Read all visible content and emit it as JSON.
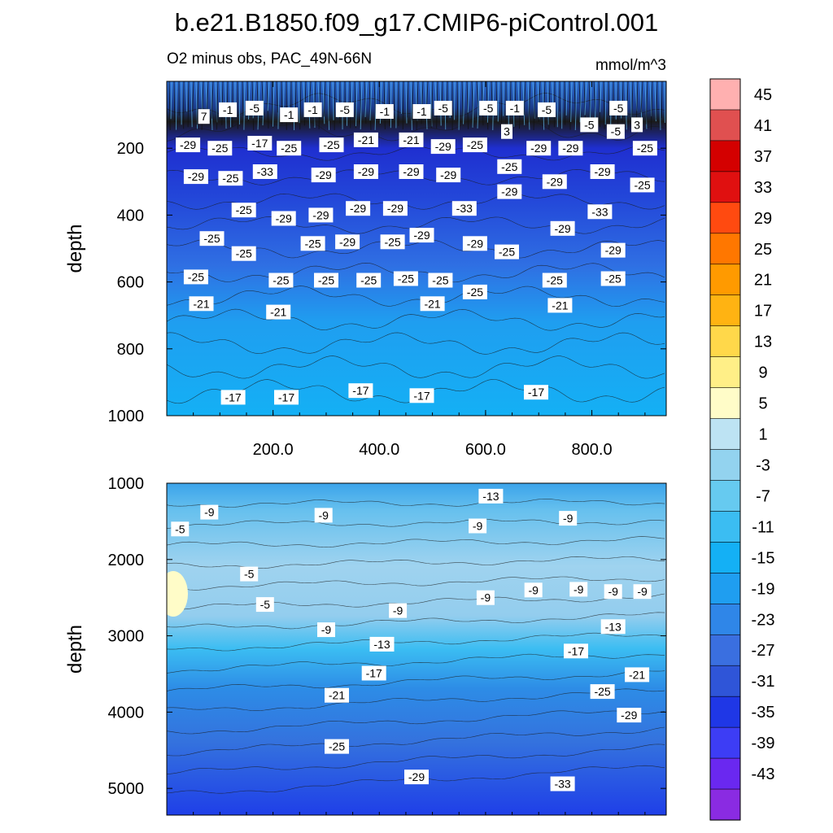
{
  "title": "b.e21.B1850.f09_g17.CMIP6-piControl.001",
  "colorbar": {
    "levels": [
      -43,
      -39,
      -35,
      -31,
      -27,
      -23,
      -19,
      -15,
      -11,
      -7,
      -3,
      1,
      5,
      9,
      13,
      17,
      21,
      25,
      29,
      33,
      37,
      41,
      45
    ],
    "colors": [
      "#8a2be2",
      "#6a28f0",
      "#3d3df5",
      "#1f37e6",
      "#2f55d8",
      "#3a6fe0",
      "#2f86e8",
      "#1f9ef0",
      "#14b0f5",
      "#3bbdf2",
      "#66caf0",
      "#93d3ef",
      "#bde3f3",
      "#fffcc8",
      "#ffef87",
      "#ffd84a",
      "#ffb312",
      "#ff9a00",
      "#ff7700",
      "#ff4a10",
      "#e01010",
      "#d40000",
      "#e05050",
      "#ffb0b0"
    ],
    "label_values": [
      45,
      41,
      37,
      33,
      29,
      25,
      21,
      17,
      13,
      9,
      5,
      1,
      -3,
      -7,
      -11,
      -15,
      -19,
      -23,
      -27,
      -31,
      -35,
      -39,
      -43
    ]
  },
  "chart_data": [
    {
      "type": "contour",
      "panel": "upper",
      "title_left": "O2 minus obs, PAC_49N-66N",
      "title_right": "mmol/m^3",
      "xlabel": "",
      "ylabel": "depth",
      "xlim": [
        0,
        940
      ],
      "ylim": [
        1000,
        0
      ],
      "x_ticks": [
        200,
        400,
        600,
        800
      ],
      "x_tick_labels": [
        "200.0",
        "400.0",
        "600.0",
        "800.0"
      ],
      "y_ticks": [
        200,
        400,
        600,
        800,
        1000
      ],
      "y_tick_labels": [
        "200",
        "400",
        "600",
        "800",
        "1000"
      ],
      "bands": [
        {
          "depth": 0,
          "value": -5
        },
        {
          "depth": 110,
          "value": -1
        },
        {
          "depth": 150,
          "value": -29
        },
        {
          "depth": 300,
          "value": -27
        },
        {
          "depth": 450,
          "value": -25
        },
        {
          "depth": 600,
          "value": -23
        },
        {
          "depth": 700,
          "value": -19
        },
        {
          "depth": 900,
          "value": -17
        },
        {
          "depth": 1000,
          "value": -17
        }
      ],
      "contour_labels": [
        {
          "text": "7",
          "x": 70,
          "y": 105
        },
        {
          "text": "-1",
          "x": 115,
          "y": 85
        },
        {
          "text": "-5",
          "x": 165,
          "y": 80
        },
        {
          "text": "-1",
          "x": 230,
          "y": 100
        },
        {
          "text": "-1",
          "x": 275,
          "y": 85
        },
        {
          "text": "-5",
          "x": 335,
          "y": 85
        },
        {
          "text": "-1",
          "x": 410,
          "y": 90
        },
        {
          "text": "-1",
          "x": 480,
          "y": 90
        },
        {
          "text": "-5",
          "x": 520,
          "y": 80
        },
        {
          "text": "-5",
          "x": 605,
          "y": 80
        },
        {
          "text": "-1",
          "x": 655,
          "y": 80
        },
        {
          "text": "-5",
          "x": 715,
          "y": 85
        },
        {
          "text": "-5",
          "x": 850,
          "y": 80
        },
        {
          "text": "-5",
          "x": 795,
          "y": 130
        },
        {
          "text": "3",
          "x": 885,
          "y": 130
        },
        {
          "text": "-29",
          "x": 40,
          "y": 190
        },
        {
          "text": "-25",
          "x": 100,
          "y": 200
        },
        {
          "text": "-17",
          "x": 175,
          "y": 185
        },
        {
          "text": "-25",
          "x": 230,
          "y": 200
        },
        {
          "text": "-25",
          "x": 310,
          "y": 190
        },
        {
          "text": "-21",
          "x": 375,
          "y": 175
        },
        {
          "text": "-21",
          "x": 460,
          "y": 175
        },
        {
          "text": "-29",
          "x": 520,
          "y": 195
        },
        {
          "text": "-25",
          "x": 580,
          "y": 190
        },
        {
          "text": "3",
          "x": 640,
          "y": 150
        },
        {
          "text": "-29",
          "x": 700,
          "y": 200
        },
        {
          "text": "-29",
          "x": 760,
          "y": 200
        },
        {
          "text": "-5",
          "x": 845,
          "y": 150
        },
        {
          "text": "-25",
          "x": 900,
          "y": 200
        },
        {
          "text": "-29",
          "x": 55,
          "y": 285
        },
        {
          "text": "-25",
          "x": 120,
          "y": 290
        },
        {
          "text": "-33",
          "x": 185,
          "y": 270
        },
        {
          "text": "-29",
          "x": 295,
          "y": 280
        },
        {
          "text": "-29",
          "x": 375,
          "y": 270
        },
        {
          "text": "-29",
          "x": 460,
          "y": 270
        },
        {
          "text": "-29",
          "x": 530,
          "y": 280
        },
        {
          "text": "-25",
          "x": 645,
          "y": 255
        },
        {
          "text": "-29",
          "x": 645,
          "y": 330
        },
        {
          "text": "-29",
          "x": 730,
          "y": 300
        },
        {
          "text": "-29",
          "x": 820,
          "y": 270
        },
        {
          "text": "-25",
          "x": 895,
          "y": 310
        },
        {
          "text": "-33",
          "x": 815,
          "y": 390
        },
        {
          "text": "-25",
          "x": 145,
          "y": 385
        },
        {
          "text": "-29",
          "x": 220,
          "y": 410
        },
        {
          "text": "-29",
          "x": 290,
          "y": 400
        },
        {
          "text": "-29",
          "x": 360,
          "y": 380
        },
        {
          "text": "-29",
          "x": 430,
          "y": 380
        },
        {
          "text": "-33",
          "x": 560,
          "y": 380
        },
        {
          "text": "-29",
          "x": 745,
          "y": 440
        },
        {
          "text": "-25",
          "x": 85,
          "y": 470
        },
        {
          "text": "-25",
          "x": 145,
          "y": 515
        },
        {
          "text": "-25",
          "x": 275,
          "y": 485
        },
        {
          "text": "-29",
          "x": 340,
          "y": 480
        },
        {
          "text": "-25",
          "x": 425,
          "y": 480
        },
        {
          "text": "-29",
          "x": 480,
          "y": 460
        },
        {
          "text": "-29",
          "x": 580,
          "y": 485
        },
        {
          "text": "-25",
          "x": 640,
          "y": 510
        },
        {
          "text": "-29",
          "x": 840,
          "y": 505
        },
        {
          "text": "-25",
          "x": 55,
          "y": 585
        },
        {
          "text": "-25",
          "x": 215,
          "y": 595
        },
        {
          "text": "-25",
          "x": 300,
          "y": 595
        },
        {
          "text": "-25",
          "x": 380,
          "y": 595
        },
        {
          "text": "-25",
          "x": 450,
          "y": 590
        },
        {
          "text": "-25",
          "x": 515,
          "y": 595
        },
        {
          "text": "-25",
          "x": 580,
          "y": 630
        },
        {
          "text": "-25",
          "x": 730,
          "y": 595
        },
        {
          "text": "-25",
          "x": 840,
          "y": 590
        },
        {
          "text": "-21",
          "x": 65,
          "y": 665
        },
        {
          "text": "-21",
          "x": 210,
          "y": 690
        },
        {
          "text": "-21",
          "x": 500,
          "y": 665
        },
        {
          "text": "-21",
          "x": 740,
          "y": 670
        },
        {
          "text": "-17",
          "x": 125,
          "y": 945
        },
        {
          "text": "-17",
          "x": 225,
          "y": 945
        },
        {
          "text": "-17",
          "x": 365,
          "y": 925
        },
        {
          "text": "-17",
          "x": 480,
          "y": 940
        },
        {
          "text": "-17",
          "x": 695,
          "y": 930
        }
      ]
    },
    {
      "type": "contour",
      "panel": "lower",
      "xlabel": "",
      "ylabel": "depth",
      "xlim": [
        0,
        940
      ],
      "ylim": [
        5350,
        1000
      ],
      "y_ticks": [
        1000,
        2000,
        3000,
        4000,
        5000
      ],
      "y_tick_labels": [
        "1000",
        "2000",
        "3000",
        "4000",
        "5000"
      ],
      "contour_labels": [
        {
          "text": "-13",
          "x": 610,
          "y": 1170
        },
        {
          "text": "-9",
          "x": 80,
          "y": 1380
        },
        {
          "text": "-9",
          "x": 295,
          "y": 1420
        },
        {
          "text": "-9",
          "x": 585,
          "y": 1560
        },
        {
          "text": "-9",
          "x": 755,
          "y": 1460
        },
        {
          "text": "-5",
          "x": 25,
          "y": 1600
        },
        {
          "text": "-5",
          "x": 155,
          "y": 2190
        },
        {
          "text": "-5",
          "x": 185,
          "y": 2590
        },
        {
          "text": "-9",
          "x": 600,
          "y": 2500
        },
        {
          "text": "-9",
          "x": 690,
          "y": 2400
        },
        {
          "text": "-9",
          "x": 775,
          "y": 2390
        },
        {
          "text": "-9",
          "x": 840,
          "y": 2420
        },
        {
          "text": "-9",
          "x": 895,
          "y": 2420
        },
        {
          "text": "-9",
          "x": 435,
          "y": 2670
        },
        {
          "text": "-9",
          "x": 300,
          "y": 2920
        },
        {
          "text": "-13",
          "x": 405,
          "y": 3110
        },
        {
          "text": "-13",
          "x": 840,
          "y": 2880
        },
        {
          "text": "-17",
          "x": 390,
          "y": 3490
        },
        {
          "text": "-17",
          "x": 770,
          "y": 3200
        },
        {
          "text": "-21",
          "x": 320,
          "y": 3780
        },
        {
          "text": "-21",
          "x": 885,
          "y": 3510
        },
        {
          "text": "-25",
          "x": 820,
          "y": 3730
        },
        {
          "text": "-29",
          "x": 870,
          "y": 4040
        },
        {
          "text": "-25",
          "x": 320,
          "y": 4450
        },
        {
          "text": "-29",
          "x": 470,
          "y": 4850
        },
        {
          "text": "-33",
          "x": 745,
          "y": 4940
        }
      ]
    }
  ]
}
